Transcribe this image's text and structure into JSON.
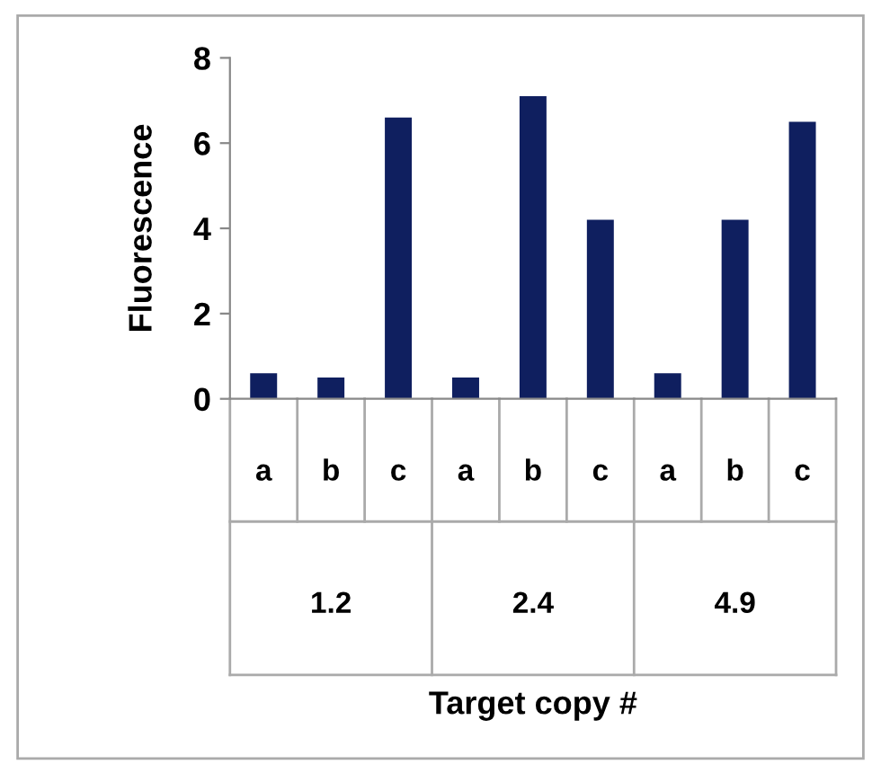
{
  "chart_data": {
    "type": "bar",
    "categories": [
      "a",
      "b",
      "c",
      "a",
      "b",
      "c",
      "a",
      "b",
      "c"
    ],
    "values": [
      0.6,
      0.5,
      6.6,
      0.5,
      7.1,
      4.2,
      0.6,
      4.2,
      6.5
    ],
    "ylabel": "Fluorescence",
    "color": "#0f1f5f",
    "annotations": [
      "1.2",
      "2.4",
      "4.9",
      "Target copy #"
    ],
    "ylim": [
      0,
      8
    ],
    "yticks": [
      0,
      2,
      4,
      6,
      8
    ],
    "grid": false,
    "legend": false
  }
}
